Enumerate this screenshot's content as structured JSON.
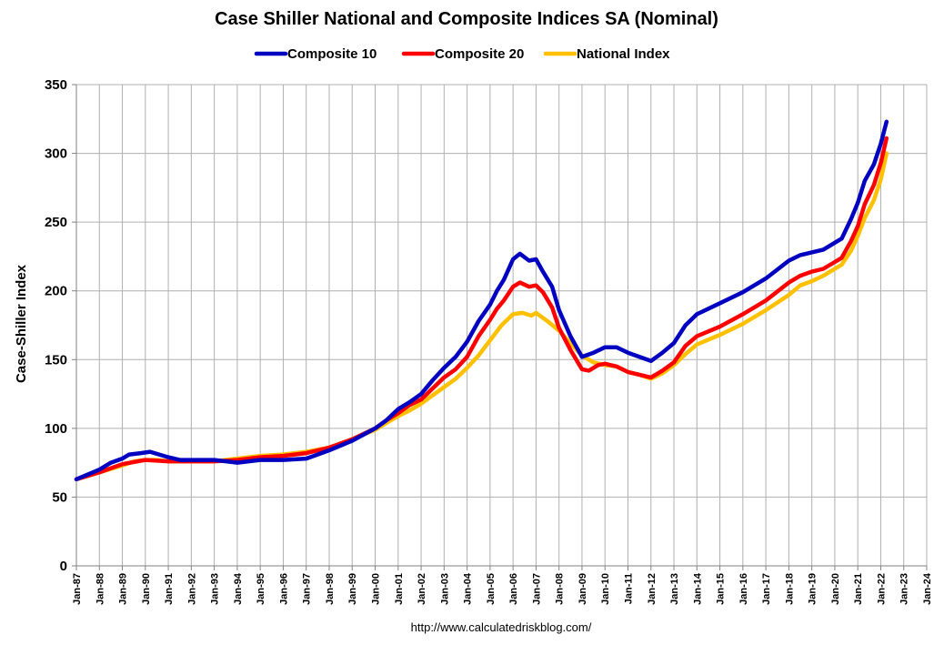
{
  "chart_data": {
    "type": "line",
    "title": "Case Shiller National and Composite Indices SA (Nominal)",
    "xlabel": "",
    "ylabel": "Case-Shiller Index",
    "source": "http://www.calculatedriskblog.com/",
    "ylim": [
      0,
      350
    ],
    "yticks": [
      0,
      50,
      100,
      150,
      200,
      250,
      300,
      350
    ],
    "xlim": [
      1987,
      2024
    ],
    "xticks": [
      "Jan-87",
      "Jan-88",
      "Jan-89",
      "Jan-90",
      "Jan-91",
      "Jan-92",
      "Jan-93",
      "Jan-94",
      "Jan-95",
      "Jan-96",
      "Jan-97",
      "Jan-98",
      "Jan-99",
      "Jan-00",
      "Jan-01",
      "Jan-02",
      "Jan-03",
      "Jan-04",
      "Jan-05",
      "Jan-06",
      "Jan-07",
      "Jan-08",
      "Jan-09",
      "Jan-10",
      "Jan-11",
      "Jan-12",
      "Jan-13",
      "Jan-14",
      "Jan-15",
      "Jan-16",
      "Jan-17",
      "Jan-18",
      "Jan-19",
      "Jan-20",
      "Jan-21",
      "Jan-22",
      "Jan-23",
      "Jan-24"
    ],
    "grid": true,
    "legend_position": "top",
    "series": [
      {
        "name": "Composite 10",
        "color": "#0000c0",
        "points": [
          [
            1987.0,
            63
          ],
          [
            1988.0,
            70
          ],
          [
            1988.5,
            75
          ],
          [
            1989.0,
            78
          ],
          [
            1989.3,
            81
          ],
          [
            1989.8,
            82
          ],
          [
            1990.2,
            83
          ],
          [
            1990.6,
            81
          ],
          [
            1991.0,
            79
          ],
          [
            1991.5,
            77
          ],
          [
            1992.0,
            77
          ],
          [
            1993.0,
            77
          ],
          [
            1994.0,
            75
          ],
          [
            1995.0,
            77
          ],
          [
            1996.0,
            77
          ],
          [
            1997.0,
            78
          ],
          [
            1997.5,
            81
          ],
          [
            1998.0,
            84
          ],
          [
            1999.0,
            91
          ],
          [
            2000.0,
            100
          ],
          [
            2000.5,
            106
          ],
          [
            2001.0,
            114
          ],
          [
            2001.5,
            119
          ],
          [
            2002.0,
            125
          ],
          [
            2002.5,
            135
          ],
          [
            2003.0,
            144
          ],
          [
            2003.5,
            152
          ],
          [
            2004.0,
            163
          ],
          [
            2004.5,
            178
          ],
          [
            2005.0,
            190
          ],
          [
            2005.3,
            200
          ],
          [
            2005.6,
            208
          ],
          [
            2006.0,
            223
          ],
          [
            2006.3,
            227
          ],
          [
            2006.7,
            222
          ],
          [
            2007.0,
            223
          ],
          [
            2007.3,
            214
          ],
          [
            2007.7,
            203
          ],
          [
            2008.0,
            186
          ],
          [
            2008.5,
            167
          ],
          [
            2009.0,
            152
          ],
          [
            2009.5,
            155
          ],
          [
            2010.0,
            159
          ],
          [
            2010.5,
            159
          ],
          [
            2011.0,
            155
          ],
          [
            2011.5,
            152
          ],
          [
            2012.0,
            149
          ],
          [
            2012.5,
            155
          ],
          [
            2013.0,
            162
          ],
          [
            2013.5,
            175
          ],
          [
            2014.0,
            183
          ],
          [
            2015.0,
            191
          ],
          [
            2016.0,
            199
          ],
          [
            2017.0,
            209
          ],
          [
            2018.0,
            222
          ],
          [
            2018.5,
            226
          ],
          [
            2019.0,
            228
          ],
          [
            2019.5,
            230
          ],
          [
            2020.0,
            235
          ],
          [
            2020.3,
            238
          ],
          [
            2020.7,
            252
          ],
          [
            2021.0,
            264
          ],
          [
            2021.3,
            280
          ],
          [
            2021.7,
            292
          ],
          [
            2022.0,
            307
          ],
          [
            2022.25,
            323
          ]
        ]
      },
      {
        "name": "Composite 20",
        "color": "#ff0000",
        "points": [
          [
            1987.0,
            63
          ],
          [
            1988.0,
            68
          ],
          [
            1989.0,
            74
          ],
          [
            1990.0,
            77
          ],
          [
            1991.0,
            76
          ],
          [
            1992.0,
            76
          ],
          [
            1993.0,
            76
          ],
          [
            1994.0,
            77
          ],
          [
            1995.0,
            79
          ],
          [
            1996.0,
            80
          ],
          [
            1997.0,
            82
          ],
          [
            1998.0,
            86
          ],
          [
            1999.0,
            92
          ],
          [
            2000.0,
            100
          ],
          [
            2000.5,
            106
          ],
          [
            2001.0,
            111
          ],
          [
            2001.5,
            117
          ],
          [
            2002.0,
            121
          ],
          [
            2002.5,
            129
          ],
          [
            2003.0,
            137
          ],
          [
            2003.5,
            143
          ],
          [
            2004.0,
            152
          ],
          [
            2004.5,
            167
          ],
          [
            2005.0,
            179
          ],
          [
            2005.3,
            187
          ],
          [
            2005.6,
            193
          ],
          [
            2006.0,
            203
          ],
          [
            2006.3,
            206
          ],
          [
            2006.7,
            203
          ],
          [
            2007.0,
            204
          ],
          [
            2007.3,
            199
          ],
          [
            2007.7,
            188
          ],
          [
            2008.0,
            173
          ],
          [
            2008.5,
            157
          ],
          [
            2009.0,
            143
          ],
          [
            2009.3,
            142
          ],
          [
            2009.7,
            146
          ],
          [
            2010.0,
            147
          ],
          [
            2010.5,
            145
          ],
          [
            2011.0,
            141
          ],
          [
            2011.5,
            139
          ],
          [
            2012.0,
            137
          ],
          [
            2012.5,
            142
          ],
          [
            2013.0,
            148
          ],
          [
            2013.5,
            160
          ],
          [
            2014.0,
            167
          ],
          [
            2015.0,
            174
          ],
          [
            2016.0,
            183
          ],
          [
            2017.0,
            193
          ],
          [
            2018.0,
            206
          ],
          [
            2018.5,
            211
          ],
          [
            2019.0,
            214
          ],
          [
            2019.5,
            216
          ],
          [
            2020.0,
            221
          ],
          [
            2020.3,
            224
          ],
          [
            2020.7,
            236
          ],
          [
            2021.0,
            247
          ],
          [
            2021.3,
            263
          ],
          [
            2021.7,
            277
          ],
          [
            2022.0,
            293
          ],
          [
            2022.25,
            311
          ]
        ]
      },
      {
        "name": "National Index",
        "color": "#ffc000",
        "points": [
          [
            1987.0,
            63
          ],
          [
            1988.0,
            68
          ],
          [
            1989.0,
            73
          ],
          [
            1989.5,
            76
          ],
          [
            1990.0,
            77
          ],
          [
            1990.5,
            77
          ],
          [
            1991.0,
            76
          ],
          [
            1992.0,
            76
          ],
          [
            1993.0,
            76
          ],
          [
            1994.0,
            78
          ],
          [
            1995.0,
            80
          ],
          [
            1996.0,
            81
          ],
          [
            1997.0,
            83
          ],
          [
            1998.0,
            86
          ],
          [
            1999.0,
            92
          ],
          [
            2000.0,
            99
          ],
          [
            2000.5,
            104
          ],
          [
            2001.0,
            109
          ],
          [
            2001.5,
            113
          ],
          [
            2002.0,
            118
          ],
          [
            2002.5,
            124
          ],
          [
            2003.0,
            130
          ],
          [
            2003.5,
            136
          ],
          [
            2004.0,
            144
          ],
          [
            2004.5,
            153
          ],
          [
            2005.0,
            164
          ],
          [
            2005.5,
            175
          ],
          [
            2006.0,
            183
          ],
          [
            2006.4,
            184
          ],
          [
            2006.8,
            182
          ],
          [
            2007.0,
            184
          ],
          [
            2007.5,
            178
          ],
          [
            2008.0,
            171
          ],
          [
            2008.5,
            162
          ],
          [
            2009.0,
            153
          ],
          [
            2009.5,
            148
          ],
          [
            2010.0,
            146
          ],
          [
            2010.5,
            145
          ],
          [
            2011.0,
            141
          ],
          [
            2011.5,
            139
          ],
          [
            2012.0,
            136
          ],
          [
            2012.5,
            140
          ],
          [
            2013.0,
            146
          ],
          [
            2013.5,
            154
          ],
          [
            2014.0,
            161
          ],
          [
            2015.0,
            168
          ],
          [
            2016.0,
            176
          ],
          [
            2017.0,
            186
          ],
          [
            2018.0,
            197
          ],
          [
            2018.5,
            204
          ],
          [
            2019.0,
            207
          ],
          [
            2019.5,
            211
          ],
          [
            2020.0,
            216
          ],
          [
            2020.3,
            219
          ],
          [
            2020.7,
            229
          ],
          [
            2021.0,
            240
          ],
          [
            2021.3,
            253
          ],
          [
            2021.7,
            266
          ],
          [
            2022.0,
            281
          ],
          [
            2022.25,
            300
          ]
        ]
      }
    ]
  }
}
